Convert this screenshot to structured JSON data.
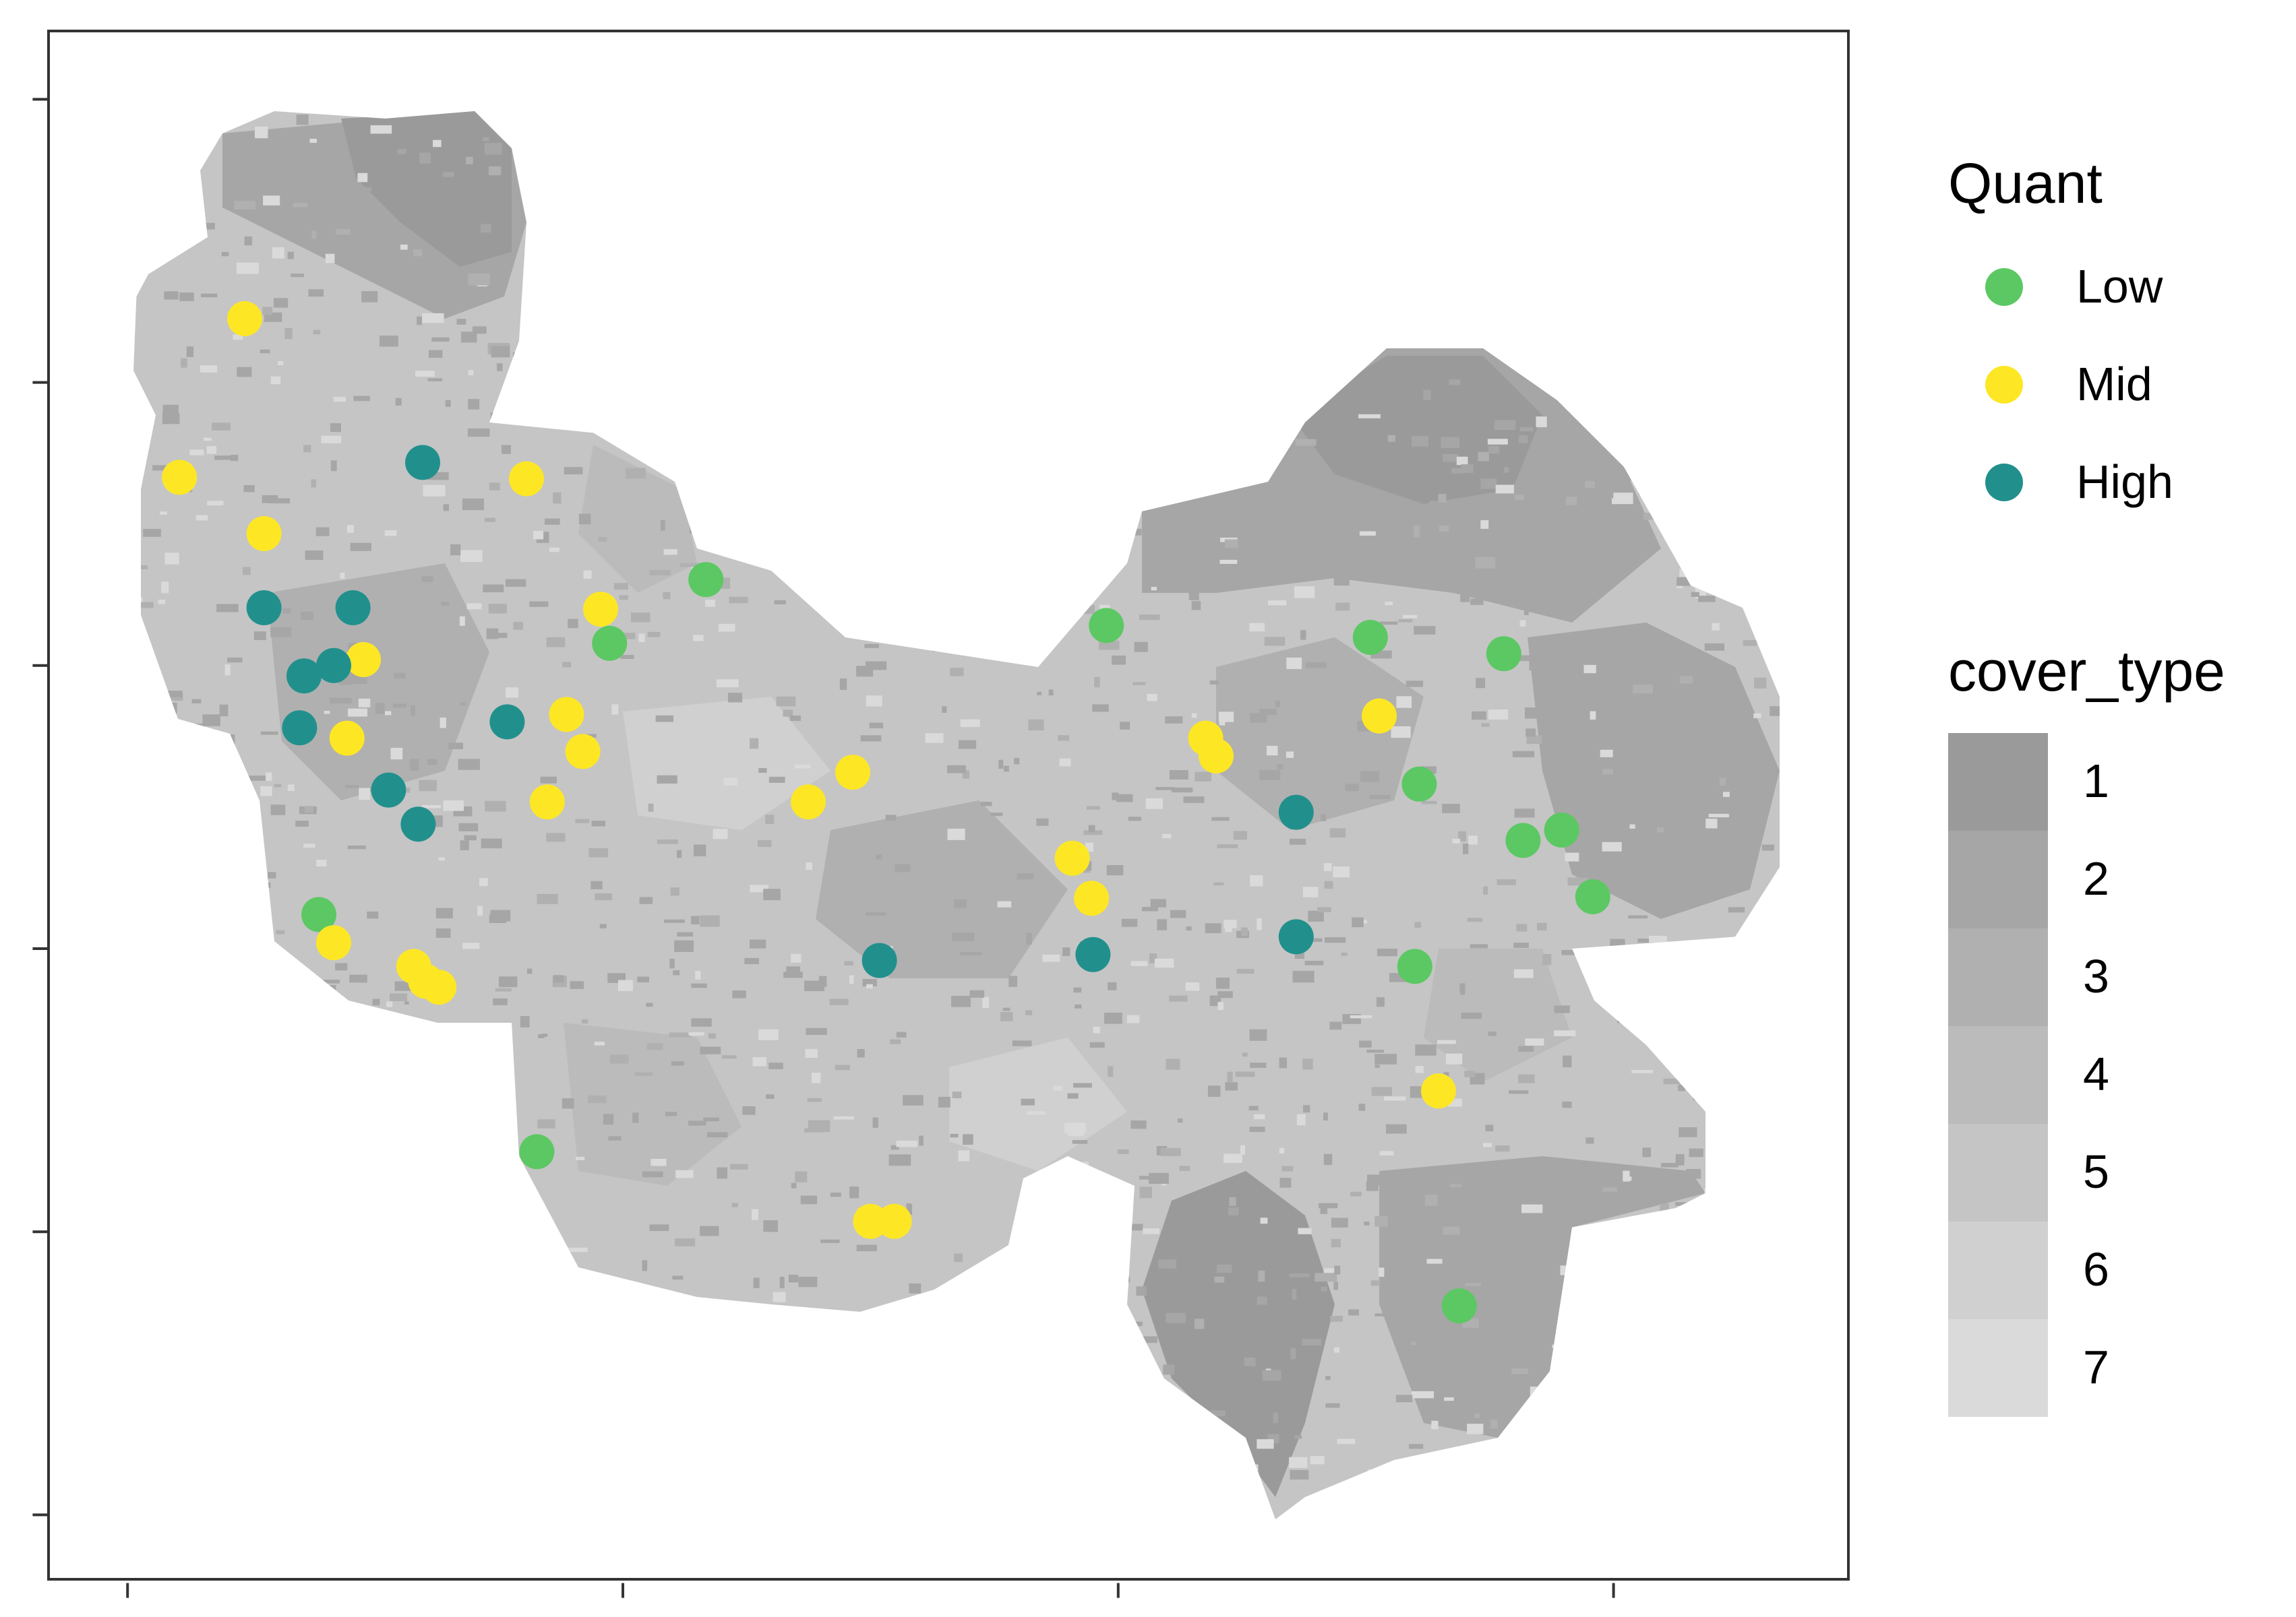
{
  "colors": {
    "background": "#ffffff",
    "panel_border": "#333333",
    "Low": "#5cc863",
    "Mid": "#fde725",
    "High": "#21908d"
  },
  "chart_data": {
    "type": "scatter",
    "title": "",
    "xlabel": "",
    "ylabel": "",
    "axis_tick_labels": "none",
    "grid": false,
    "legend_placement": "right",
    "legend": {
      "quant": {
        "title": "Quant",
        "entries": [
          {
            "label": "Low",
            "color": "#5cc863"
          },
          {
            "label": "Mid",
            "color": "#fde725"
          },
          {
            "label": "High",
            "color": "#21908d"
          }
        ]
      },
      "cover_type": {
        "title": "cover_type",
        "classes": [
          {
            "label": "1",
            "color": "#9a9a9a"
          },
          {
            "label": "2",
            "color": "#a6a6a6"
          },
          {
            "label": "3",
            "color": "#b0b0b0"
          },
          {
            "label": "4",
            "color": "#bbbbbb"
          },
          {
            "label": "5",
            "color": "#c5c5c5"
          },
          {
            "label": "6",
            "color": "#d0d0d0"
          },
          {
            "label": "7",
            "color": "#dadada"
          }
        ]
      }
    },
    "series": [
      {
        "name": "Low",
        "points": [
          [
            215,
            617
          ],
          [
            362,
            777
          ],
          [
            411,
            434
          ],
          [
            476,
            391
          ],
          [
            746,
            422
          ],
          [
            924,
            430
          ],
          [
            1014,
            441
          ],
          [
            957,
            529
          ],
          [
            1027,
            567
          ],
          [
            1053,
            560
          ],
          [
            1074,
            605
          ],
          [
            954,
            652
          ],
          [
            984,
            881
          ]
        ]
      },
      {
        "name": "Mid",
        "points": [
          [
            165,
            215
          ],
          [
            121,
            322
          ],
          [
            178,
            360
          ],
          [
            245,
            445
          ],
          [
            234,
            498
          ],
          [
            225,
            636
          ],
          [
            279,
            652
          ],
          [
            287,
            662
          ],
          [
            296,
            666
          ],
          [
            355,
            323
          ],
          [
            405,
            411
          ],
          [
            382,
            482
          ],
          [
            393,
            507
          ],
          [
            369,
            541
          ],
          [
            545,
            541
          ],
          [
            575,
            521
          ],
          [
            587,
            824
          ],
          [
            603,
            824
          ],
          [
            723,
            579
          ],
          [
            736,
            606
          ],
          [
            813,
            498
          ],
          [
            820,
            510
          ],
          [
            930,
            483
          ],
          [
            970,
            736
          ]
        ]
      },
      {
        "name": "High",
        "points": [
          [
            285,
            312
          ],
          [
            178,
            410
          ],
          [
            238,
            410
          ],
          [
            205,
            456
          ],
          [
            225,
            449
          ],
          [
            202,
            491
          ],
          [
            262,
            533
          ],
          [
            282,
            556
          ],
          [
            342,
            487
          ],
          [
            593,
            648
          ],
          [
            737,
            644
          ],
          [
            874,
            548
          ],
          [
            874,
            632
          ]
        ]
      }
    ]
  }
}
